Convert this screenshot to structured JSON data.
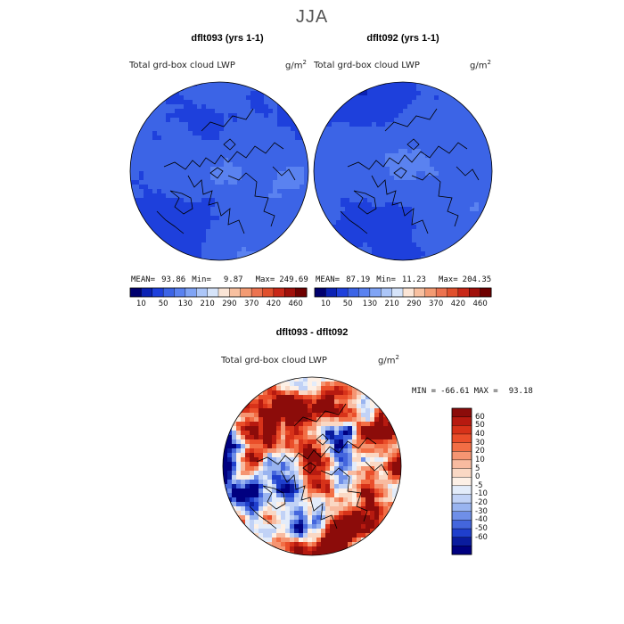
{
  "page": {
    "season": "JJA"
  },
  "chart_data": [
    {
      "type": "heatmap",
      "title": "dflt093 (yrs 1-1)",
      "field_label": "Total grd-box cloud LWP",
      "units_base": "g/m",
      "units_exp": "2",
      "projection": "north-polar-stereographic",
      "stats": {
        "mean_label": "MEAN=",
        "mean": "93.86",
        "min_label": "Min=",
        "min": "9.87",
        "max_label": "Max=",
        "max": "249.69"
      },
      "colorbar": {
        "orientation": "horizontal",
        "tick_labels": [
          "10",
          "50",
          "130",
          "210",
          "290",
          "370",
          "420",
          "460"
        ],
        "colors": [
          "#00006e",
          "#0b22b4",
          "#1e40dc",
          "#3c64e6",
          "#5a82f0",
          "#80a4f5",
          "#acc6f8",
          "#d6e4fa",
          "#fbe5d6",
          "#f8c0a0",
          "#f39b73",
          "#ec7350",
          "#e0502d",
          "#c82818",
          "#a0100a",
          "#6e0000"
        ]
      }
    },
    {
      "type": "heatmap",
      "title": "dflt092 (yrs 1-1)",
      "field_label": "Total grd-box cloud LWP",
      "units_base": "g/m",
      "units_exp": "2",
      "projection": "north-polar-stereographic",
      "stats": {
        "mean_label": "MEAN=",
        "mean": "87.19",
        "min_label": "Min=",
        "min": "11.23",
        "max_label": "Max=",
        "max": "204.35"
      },
      "colorbar": {
        "orientation": "horizontal",
        "tick_labels": [
          "10",
          "50",
          "130",
          "210",
          "290",
          "370",
          "420",
          "460"
        ],
        "colors": [
          "#00006e",
          "#0b22b4",
          "#1e40dc",
          "#3c64e6",
          "#5a82f0",
          "#80a4f5",
          "#acc6f8",
          "#d6e4fa",
          "#fbe5d6",
          "#f8c0a0",
          "#f39b73",
          "#ec7350",
          "#e0502d",
          "#c82818",
          "#a0100a",
          "#6e0000"
        ]
      }
    },
    {
      "type": "heatmap",
      "title": "dflt093 - dflt092",
      "field_label": "Total grd-box cloud LWP",
      "units_base": "g/m",
      "units_exp": "2",
      "projection": "north-polar-stereographic",
      "stats": {
        "min_label": "MIN =",
        "min": "-66.61",
        "max_label": "MAX =",
        "max": "93.18"
      },
      "colorbar": {
        "orientation": "vertical",
        "tick_labels": [
          "60",
          "50",
          "40",
          "30",
          "20",
          "10",
          "5",
          "0",
          "-5",
          "-10",
          "-20",
          "-30",
          "-40",
          "-50",
          "-60"
        ],
        "colors": [
          "#8c0c0a",
          "#b71a10",
          "#d73219",
          "#ea4e2a",
          "#f26e45",
          "#f59572",
          "#f8bba0",
          "#fad8c4",
          "#fdf0e6",
          "#e3ecfa",
          "#c1d2f6",
          "#99b4f0",
          "#6f8fe8",
          "#4466dd",
          "#1f3fcc",
          "#0a1c9e",
          "#000080"
        ]
      }
    }
  ]
}
